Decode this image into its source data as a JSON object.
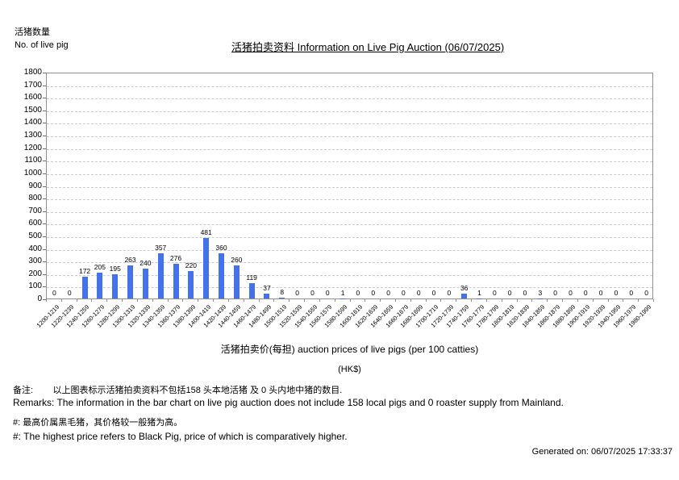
{
  "header": {
    "y_axis_label_cn": "活猪数量",
    "y_axis_label_en": "No. of live pig",
    "title": "活猪拍卖资料 Information on Live Pig Auction (06/07/2025)"
  },
  "chart_data": {
    "type": "bar",
    "title": "活猪拍卖资料 Information on Live Pig Auction (06/07/2025)",
    "xlabel": "活猪拍卖价(每担) auction prices of live pigs (per 100 catties)",
    "xlabel_unit": "(HK$)",
    "ylabel_cn": "活猪数量",
    "ylabel_en": "No. of live pig",
    "ylim": [
      0,
      1800
    ],
    "ytick_step": 100,
    "grid": "horizontal-dashed",
    "legend": "none",
    "bar_color": "#4472ea",
    "categories": [
      "1200-1219",
      "1220-1239",
      "1240-1259",
      "1260-1279",
      "1280-1299",
      "1300-1319",
      "1320-1339",
      "1340-1359",
      "1360-1379",
      "1380-1399",
      "1400-1419",
      "1420-1439",
      "1440-1459",
      "1460-1479",
      "1480-1499",
      "1500-1519",
      "1520-1539",
      "1540-1559",
      "1560-1579",
      "1580-1599",
      "1600-1619",
      "1620-1639",
      "1640-1659",
      "1660-1679",
      "1680-1699",
      "1700-1719",
      "1720-1739",
      "1740-1759",
      "1760-1779",
      "1780-1799",
      "1800-1819",
      "1820-1839",
      "1840-1859",
      "1860-1879",
      "1880-1899",
      "1900-1919",
      "1920-1939",
      "1940-1959",
      "1960-1979",
      "1980-1999"
    ],
    "values": [
      0,
      0,
      172,
      205,
      195,
      263,
      240,
      357,
      276,
      220,
      481,
      360,
      260,
      119,
      37,
      8,
      0,
      0,
      0,
      1,
      0,
      0,
      0,
      0,
      0,
      0,
      0,
      36,
      1,
      0,
      0,
      0,
      3,
      0,
      0,
      0,
      0,
      0,
      0,
      0
    ]
  },
  "footer": {
    "remark_cn": "备注:        以上图表标示活猪拍卖资料不包括158 头本地活猪 及 0 头内地中猪的数目.",
    "remark_en": "Remarks: The information in the bar chart on live pig auction does not include 158 local pigs and 0 roaster supply from Mainland.",
    "note_cn": "#: 最高价属黑毛猪，其价格较一般猪为高。",
    "note_en": "#: The highest price refers to Black Pig, price of which is comparatively higher.",
    "generated": "Generated on: 06/07/2025 17:33:37"
  }
}
